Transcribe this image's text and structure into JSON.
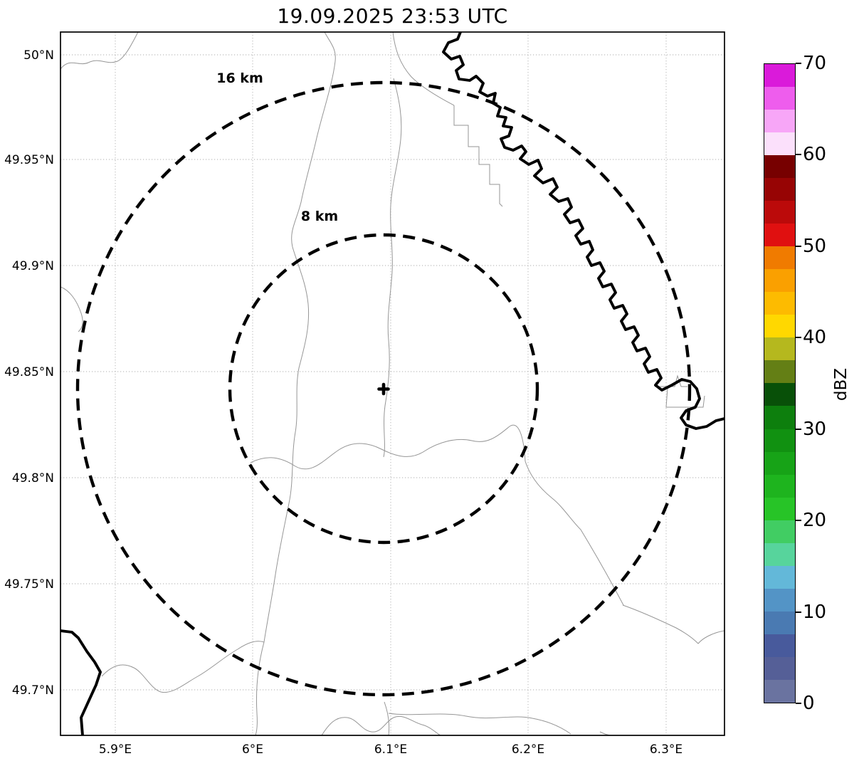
{
  "title": "19.09.2025 23:53 UTC",
  "map": {
    "x_tick_labels": [
      "5.9°E",
      "6°E",
      "6.1°E",
      "6.2°E",
      "6.3°E"
    ],
    "y_tick_labels": [
      "50°N",
      "49.95°N",
      "49.9°N",
      "49.85°N",
      "49.8°N",
      "49.75°N",
      "49.7°N"
    ],
    "range_rings": [
      {
        "label": "16 km",
        "radius_km": 16
      },
      {
        "label": "8 km",
        "radius_km": 8
      }
    ],
    "center_marker": "radar site",
    "line_legend": {
      "thick_black": "country border / river",
      "thin_gray": "administrative boundaries / streams",
      "dashed_black": "range rings"
    }
  },
  "colorbar": {
    "label": "dBZ",
    "min": 0,
    "max": 70,
    "segment_step": 2.5,
    "tick_labels": [
      "70",
      "60",
      "50",
      "40",
      "30",
      "20",
      "10",
      "0"
    ],
    "colors_top_to_bottom": [
      "#da1ada",
      "#ee5ded",
      "#f7a6f7",
      "#fbe0fb",
      "#770000",
      "#970404",
      "#bb0a0a",
      "#e01010",
      "#f07b00",
      "#faa000",
      "#fdbb00",
      "#ffd800",
      "#b5b81e",
      "#647f15",
      "#085008",
      "#0d7f0d",
      "#119111",
      "#17a317",
      "#1eb41e",
      "#27c427",
      "#41cd63",
      "#57d49c",
      "#63b8d9",
      "#5394c6",
      "#4a7ab2",
      "#485a9c",
      "#555f97",
      "#6a73a0"
    ]
  }
}
